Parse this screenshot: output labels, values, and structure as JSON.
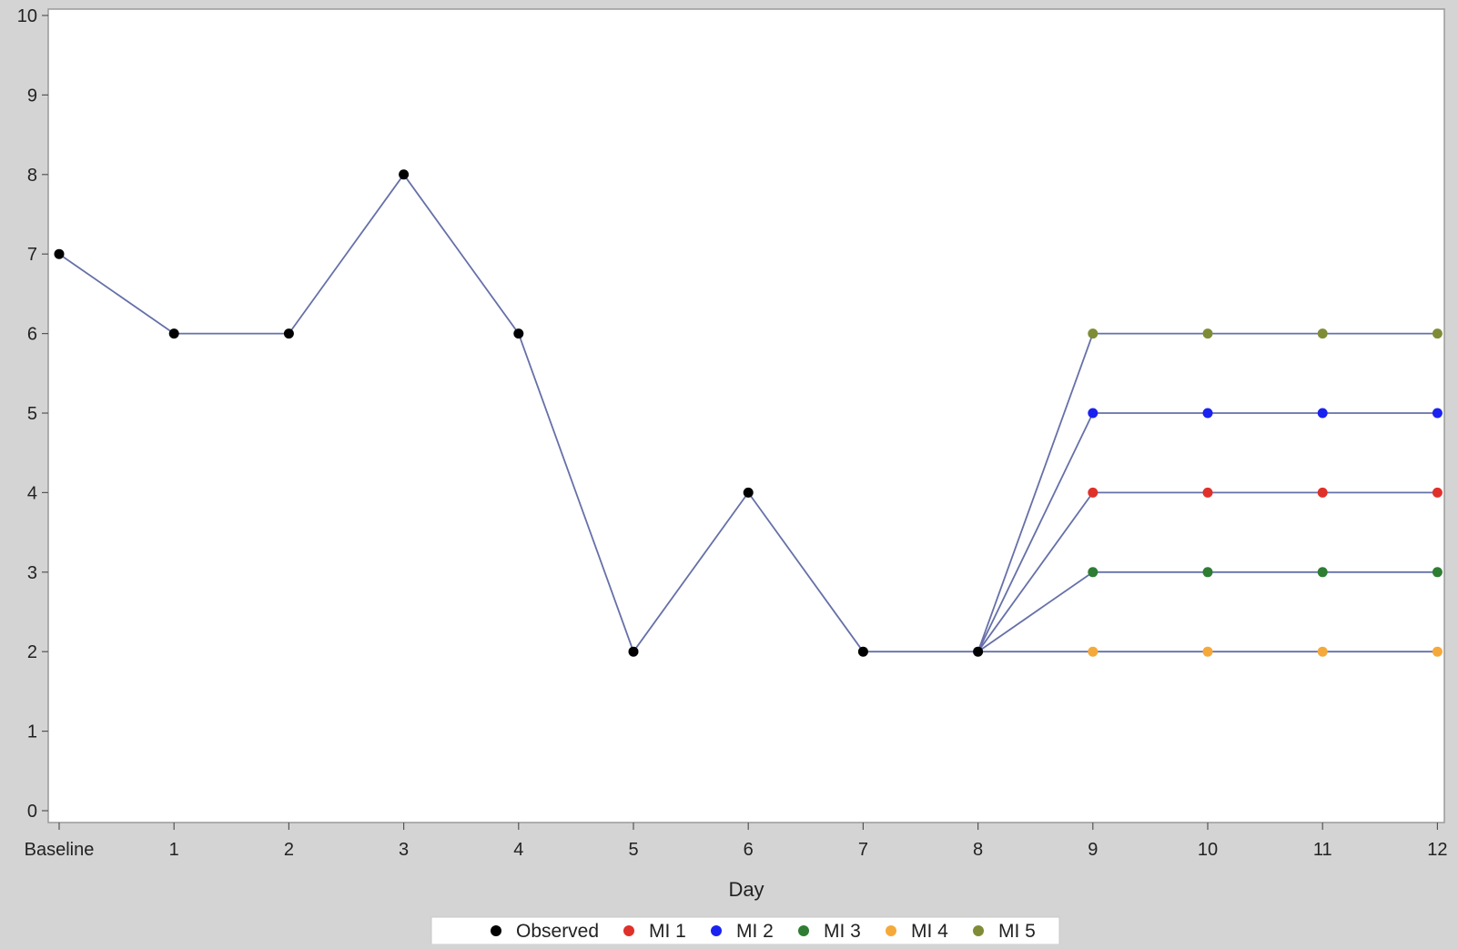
{
  "chart_data": {
    "type": "line",
    "title": "",
    "xlabel": "Day",
    "ylabel": "",
    "x_categories": [
      "Baseline",
      "1",
      "2",
      "3",
      "4",
      "5",
      "6",
      "7",
      "8",
      "9",
      "10",
      "11",
      "12"
    ],
    "y_ticks": [
      "0",
      "1",
      "2",
      "3",
      "4",
      "5",
      "6",
      "7",
      "8",
      "9",
      "10"
    ],
    "ylim": [
      0,
      10
    ],
    "grid": false,
    "legend_position": "bottom",
    "line_color": "#6670a8",
    "series": [
      {
        "name": "Observed",
        "color": "#000000",
        "x": [
          "Baseline",
          "1",
          "2",
          "3",
          "4",
          "5",
          "6",
          "7",
          "8"
        ],
        "values": [
          7,
          6,
          6,
          8,
          6,
          2,
          4,
          2,
          2
        ]
      },
      {
        "name": "MI 1",
        "color": "#e0302a",
        "x": [
          "9",
          "10",
          "11",
          "12"
        ],
        "values": [
          4,
          4,
          4,
          4
        ]
      },
      {
        "name": "MI 2",
        "color": "#1a22f0",
        "x": [
          "9",
          "10",
          "11",
          "12"
        ],
        "values": [
          5,
          5,
          5,
          5
        ]
      },
      {
        "name": "MI 3",
        "color": "#2e7d32",
        "x": [
          "9",
          "10",
          "11",
          "12"
        ],
        "values": [
          3,
          3,
          3,
          3
        ]
      },
      {
        "name": "MI 4",
        "color": "#f5a93a",
        "x": [
          "9",
          "10",
          "11",
          "12"
        ],
        "values": [
          2,
          2,
          2,
          2
        ]
      },
      {
        "name": "MI 5",
        "color": "#7f8c35",
        "x": [
          "9",
          "10",
          "11",
          "12"
        ],
        "values": [
          6,
          6,
          6,
          6
        ]
      }
    ]
  }
}
